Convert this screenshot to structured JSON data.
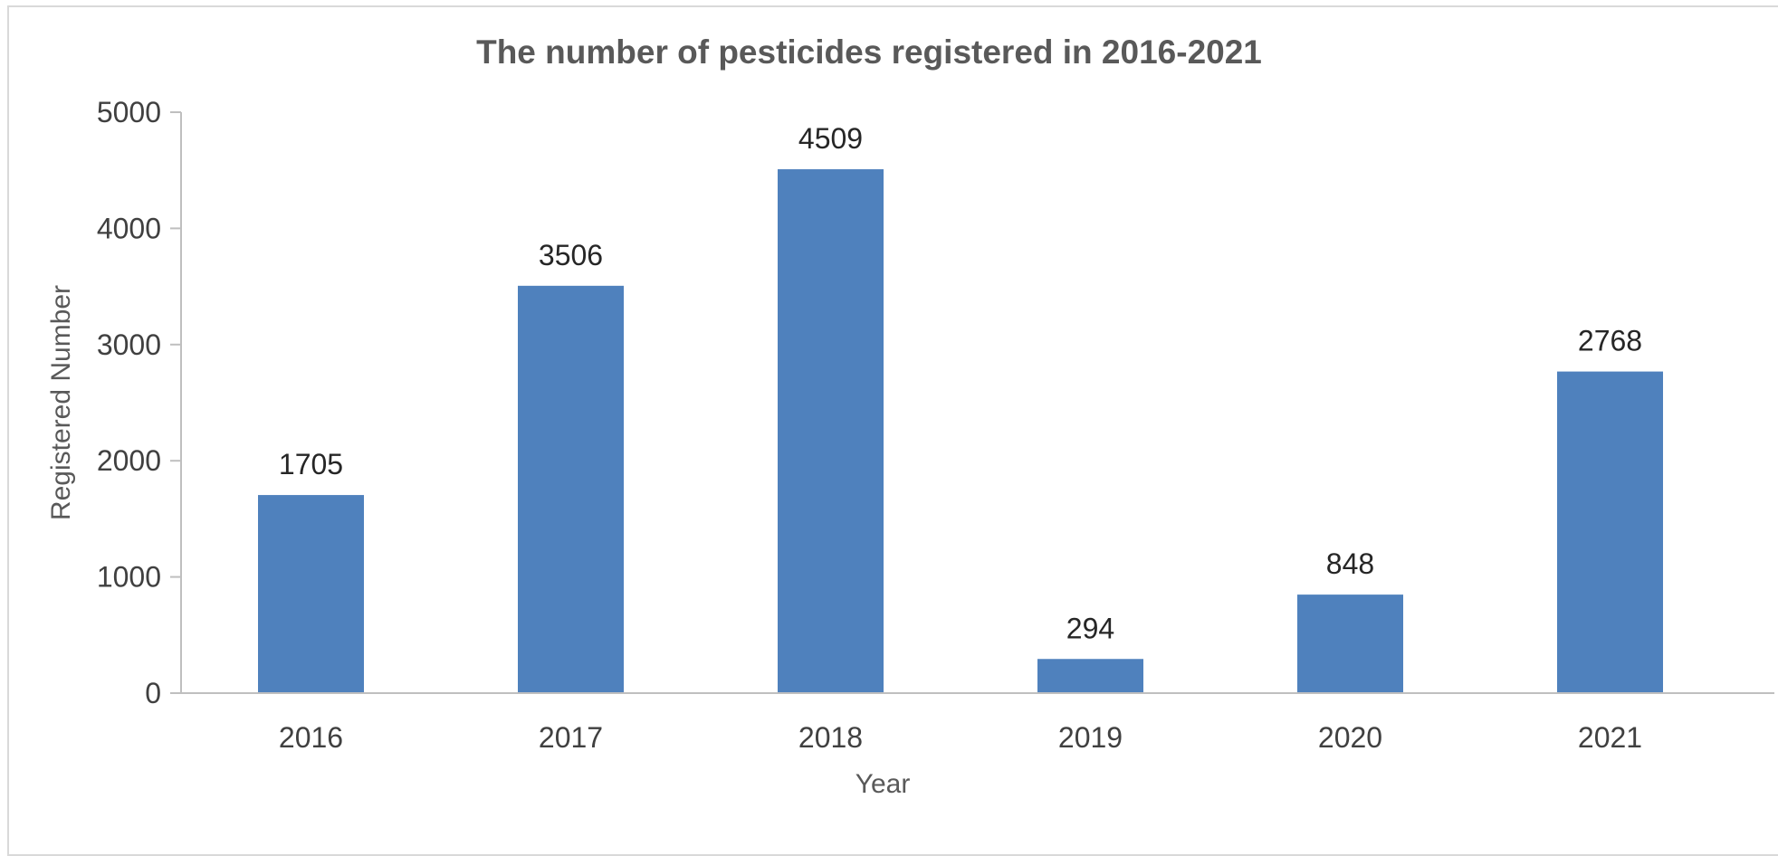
{
  "chart_data": {
    "type": "bar",
    "title": "The number of pesticides registered in 2016-2021",
    "xlabel": "Year",
    "ylabel": "Registered  Number",
    "categories": [
      "2016",
      "2017",
      "2018",
      "2019",
      "2020",
      "2021"
    ],
    "values": [
      1705,
      3506,
      4509,
      294,
      848,
      2768
    ],
    "data_labels": [
      "1705",
      "3506",
      "4509",
      "294",
      "848",
      "2768"
    ],
    "ylim": [
      0,
      5000
    ],
    "yticks": [
      "0",
      "1000",
      "2000",
      "3000",
      "4000",
      "5000"
    ],
    "grid": false,
    "legend": "none",
    "bar_color": "#4f81bd"
  }
}
